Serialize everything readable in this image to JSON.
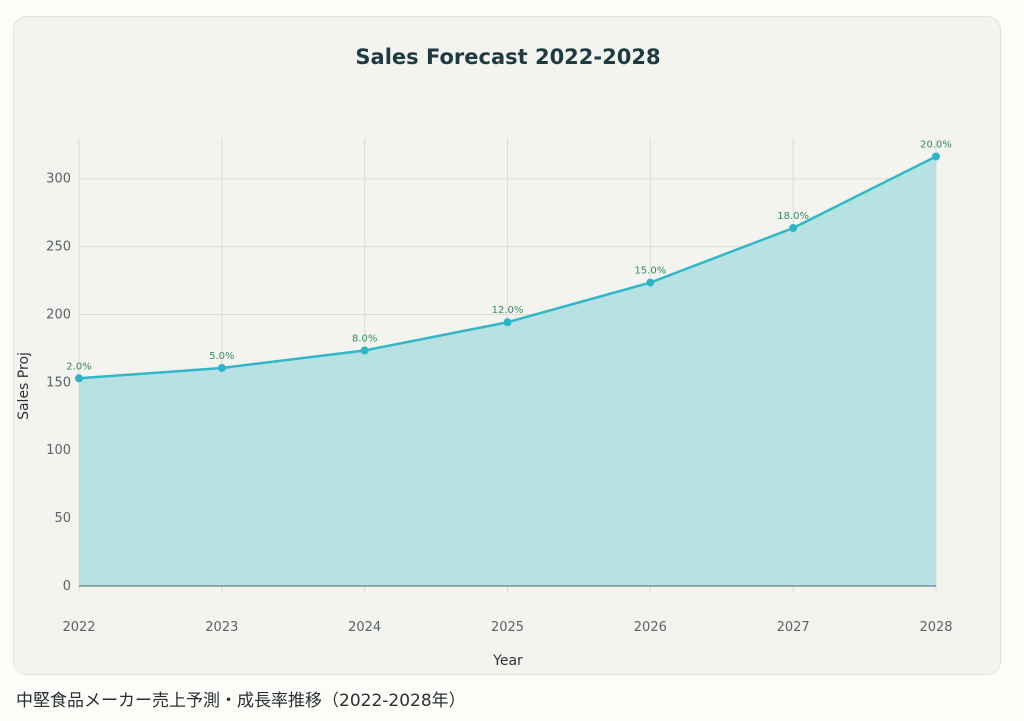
{
  "chart_data": {
    "type": "area",
    "title": "Sales Forecast 2022-2028",
    "xlabel": "Year",
    "ylabel": "Sales Proj",
    "categories": [
      "2022",
      "2023",
      "2024",
      "2025",
      "2026",
      "2027",
      "2028"
    ],
    "values": [
      153,
      160.6,
      173.5,
      194.3,
      223.5,
      263.7,
      316.4
    ],
    "data_labels": [
      "2.0%",
      "5.0%",
      "8.0%",
      "12.0%",
      "15.0%",
      "18.0%",
      "20.0%"
    ],
    "ylim": [
      0,
      330
    ],
    "yticks": [
      0,
      50,
      100,
      150,
      200,
      250,
      300
    ],
    "grid": true,
    "colors": {
      "line": "#32b6c8",
      "fill": "#b4dfe3",
      "marker": "#2fb3c6",
      "data_label": "#3a8a5f",
      "grid": "#dcdcd6",
      "baseline": "#4a6a6e"
    }
  },
  "caption": "中堅食品メーカー売上予測・成長率推移（2022-2028年）"
}
